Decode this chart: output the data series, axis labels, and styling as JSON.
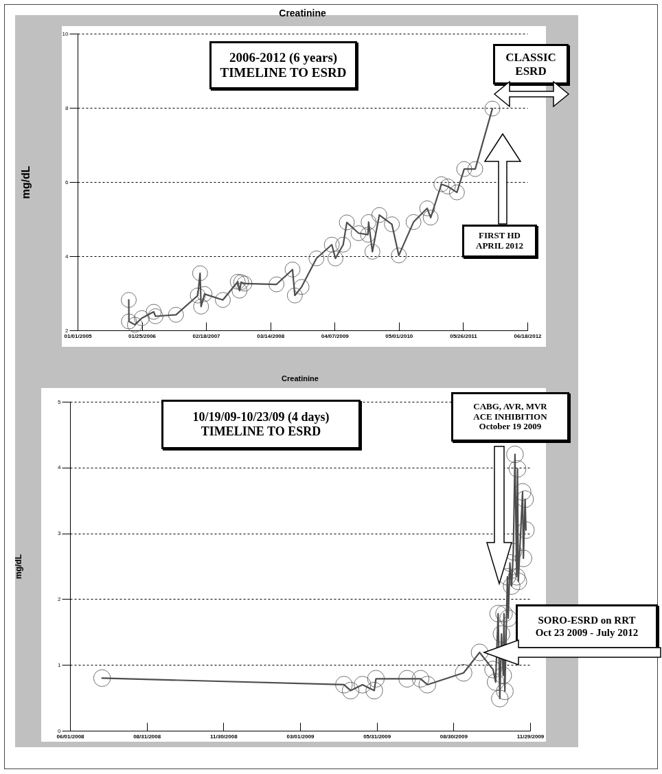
{
  "chart_data": [
    {
      "type": "line",
      "title": "Creatinine",
      "ylabel": "mg/dL",
      "grid": "y",
      "marker": "circle",
      "line_style": "solid",
      "x": [
        "2005-11-07",
        "2005-11-08",
        "2005-12-14",
        "2006-01-25",
        "2006-04-07",
        "2006-04-18",
        "2006-08-20",
        "2006-12-30",
        "2007-01-13",
        "2007-01-19",
        "2007-02-09",
        "2007-05-31",
        "2007-08-29",
        "2007-09-09",
        "2007-09-19",
        "2007-10-09",
        "2008-04-20",
        "2008-07-26",
        "2008-08-09",
        "2008-09-19",
        "2008-12-18",
        "2009-03-21",
        "2009-04-12",
        "2009-05-29",
        "2009-06-20",
        "2009-08-30",
        "2009-10-26",
        "2009-10-30",
        "2009-11-22",
        "2010-01-03",
        "2010-03-20",
        "2010-05-01",
        "2010-07-29",
        "2010-10-20",
        "2010-11-10",
        "2011-01-14",
        "2011-02-22",
        "2011-04-18",
        "2011-06-01",
        "2011-08-07",
        "2011-11-19"
      ],
      "series": [
        {
          "color": "#4d4d4d",
          "values": [
            2.82,
            2.24,
            2.15,
            2.33,
            2.5,
            2.38,
            2.42,
            2.94,
            3.54,
            2.64,
            2.98,
            2.82,
            3.31,
            3.07,
            3.3,
            3.26,
            3.24,
            3.64,
            2.94,
            3.17,
            3.94,
            4.31,
            3.94,
            4.31,
            4.91,
            4.62,
            4.58,
            4.92,
            4.12,
            5.11,
            4.86,
            4.02,
            4.92,
            5.29,
            5.04,
            5.94,
            5.88,
            5.72,
            6.35,
            6.35,
            7.98
          ]
        }
      ],
      "xlim": [
        "2005-01-01",
        "2012-06-18"
      ],
      "xticks": [
        {
          "value": "2005-01-01",
          "label": "01/01/2005"
        },
        {
          "value": "2006-01-25",
          "label": "01/25/2006"
        },
        {
          "value": "2007-02-18",
          "label": "02/18/2007"
        },
        {
          "value": "2008-03-14",
          "label": "03/14/2008"
        },
        {
          "value": "2009-04-07",
          "label": "04/07/2009"
        },
        {
          "value": "2010-05-01",
          "label": "05/01/2010"
        },
        {
          "value": "2011-05-26",
          "label": "05/26/2011"
        },
        {
          "value": "2012-06-18",
          "label": "06/18/2012"
        }
      ],
      "ylim": [
        2,
        10
      ],
      "yticks": [
        2,
        4,
        6,
        8,
        10
      ],
      "annotations": [
        "2006-2012 (6 years)\nTIMELINE TO ESRD",
        "CLASSIC\nESRD",
        "FIRST HD\nAPRIL 2012"
      ]
    },
    {
      "type": "line",
      "title": "Creatinine",
      "ylabel": "mg/dL",
      "grid": "y",
      "marker": "circle",
      "line_style": "solid",
      "x": [
        "2008-07-09",
        "2009-04-22",
        "2009-04-30",
        "2009-05-14",
        "2009-05-28",
        "2009-05-30",
        "2009-07-06",
        "2009-07-22",
        "2009-07-30",
        "2009-09-11",
        "2009-09-30",
        "2009-10-16",
        "2009-10-19",
        "2009-10-22",
        "2009-10-24",
        "2009-10-26",
        "2009-10-28",
        "2009-10-29",
        "2009-10-30",
        "2009-11-02",
        "2009-11-03",
        "2009-11-05",
        "2009-11-07",
        "2009-11-09",
        "2009-11-11",
        "2009-11-13",
        "2009-11-14",
        "2009-11-15",
        "2009-11-20",
        "2009-11-21",
        "2009-11-23",
        "2009-11-24"
      ],
      "series": [
        {
          "color": "#4d4d4d",
          "values": [
            0.8,
            0.7,
            0.61,
            0.7,
            0.61,
            0.79,
            0.79,
            0.79,
            0.7,
            0.88,
            1.19,
            0.93,
            0.74,
            1.78,
            0.49,
            1.47,
            0.84,
            1.78,
            0.6,
            2.34,
            1.71,
            2.55,
            2.2,
            2.72,
            4.2,
            2.34,
            3.98,
            2.27,
            3.63,
            2.62,
            3.52,
            3.05
          ]
        }
      ],
      "xlim": [
        "2008-06-01",
        "2009-11-29"
      ],
      "xticks": [
        {
          "value": "2008-06-01",
          "label": "06/01/2008"
        },
        {
          "value": "2008-08-31",
          "label": "08/31/2008"
        },
        {
          "value": "2008-11-30",
          "label": "11/30/2008"
        },
        {
          "value": "2009-03-01",
          "label": "03/01/2009"
        },
        {
          "value": "2009-05-31",
          "label": "05/31/2009"
        },
        {
          "value": "2009-08-30",
          "label": "08/30/2009"
        },
        {
          "value": "2009-11-29",
          "label": "11/29/2009"
        }
      ],
      "ylim": [
        0,
        5
      ],
      "yticks": [
        0,
        1,
        2,
        3,
        4,
        5
      ],
      "annotations": [
        "10/19/09-10/23/09 (4 days)\nTIMELINE TO ESRD",
        "CABG, AVR, MVR\nACE INHIBITION\nOctober 19 2009",
        "SORO-ESRD on RRT\nOct 23 2009 - July 2012"
      ]
    }
  ]
}
